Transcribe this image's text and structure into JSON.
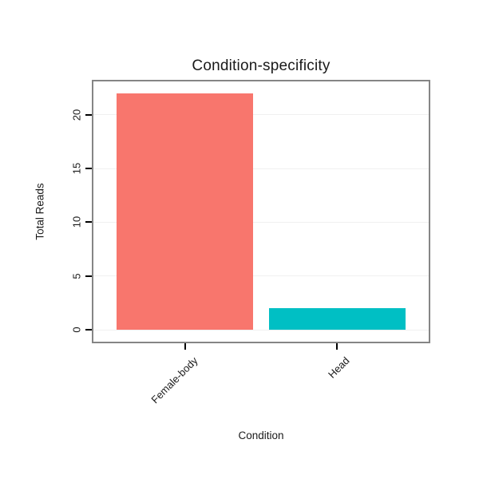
{
  "chart_data": {
    "type": "bar",
    "title": "Condition-specificity",
    "xlabel": "Condition",
    "ylabel": "Total Reads",
    "categories": [
      "Female-body",
      "Head"
    ],
    "values": [
      22,
      2
    ],
    "bar_colors": [
      "#F8766D",
      "#00BFC4"
    ],
    "yticks": [
      0,
      5,
      10,
      15,
      20
    ],
    "ylim": [
      -1.1,
      23.1
    ],
    "grid": "faint horizontal major gridlines",
    "legend": "none",
    "panel_border_color": "#858585",
    "background_color": "#FFFFFF",
    "xtick_label_rotation_deg": 45,
    "ytick_label_rotation_deg": 90
  }
}
